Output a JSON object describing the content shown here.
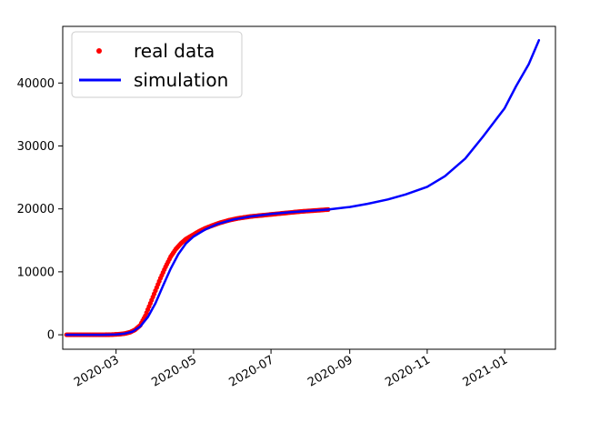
{
  "chart_data": {
    "type": "line",
    "x_axis": {
      "kind": "date",
      "min": "2020-01-19",
      "max": "2021-02-10",
      "ticks": [
        "2020-03-01",
        "2020-05-01",
        "2020-07-01",
        "2020-09-01",
        "2020-11-01",
        "2021-01-01"
      ],
      "tick_labels": [
        "2020-03",
        "2020-05",
        "2020-07",
        "2020-09",
        "2020-11",
        "2021-01"
      ]
    },
    "y_axis": {
      "min": -2300,
      "max": 49000,
      "ticks": [
        0,
        10000,
        20000,
        30000,
        40000
      ],
      "tick_labels": [
        "0",
        "10000",
        "20000",
        "30000",
        "40000"
      ]
    },
    "grid": false,
    "legend": {
      "placement": "upper-left",
      "entries": [
        "real data",
        "simulation"
      ]
    },
    "series": [
      {
        "name": "real data",
        "style": "points",
        "color": "#ff0000",
        "x": [
          "2020-01-22",
          "2020-01-29",
          "2020-02-05",
          "2020-02-12",
          "2020-02-19",
          "2020-02-26",
          "2020-03-04",
          "2020-03-08",
          "2020-03-12",
          "2020-03-16",
          "2020-03-20",
          "2020-03-24",
          "2020-03-28",
          "2020-04-01",
          "2020-04-05",
          "2020-04-09",
          "2020-04-13",
          "2020-04-17",
          "2020-04-21",
          "2020-04-25",
          "2020-04-30",
          "2020-05-05",
          "2020-05-10",
          "2020-05-15",
          "2020-05-22",
          "2020-05-29",
          "2020-06-05",
          "2020-06-15",
          "2020-06-25",
          "2020-07-05",
          "2020-07-15",
          "2020-07-25",
          "2020-08-05",
          "2020-08-15"
        ],
        "y": [
          0,
          0,
          0,
          0,
          0,
          20,
          100,
          200,
          400,
          800,
          1500,
          3000,
          5000,
          7000,
          9000,
          10800,
          12400,
          13600,
          14500,
          15200,
          15800,
          16400,
          16900,
          17300,
          17800,
          18200,
          18500,
          18800,
          19000,
          19200,
          19400,
          19600,
          19750,
          19900
        ]
      },
      {
        "name": "simulation",
        "style": "line",
        "color": "#0000ff",
        "x": [
          "2020-01-22",
          "2020-02-05",
          "2020-02-19",
          "2020-03-01",
          "2020-03-08",
          "2020-03-14",
          "2020-03-20",
          "2020-03-26",
          "2020-04-01",
          "2020-04-07",
          "2020-04-13",
          "2020-04-19",
          "2020-04-25",
          "2020-05-01",
          "2020-05-10",
          "2020-05-20",
          "2020-06-01",
          "2020-06-15",
          "2020-07-01",
          "2020-07-15",
          "2020-08-01",
          "2020-08-15",
          "2020-09-01",
          "2020-09-15",
          "2020-10-01",
          "2020-10-15",
          "2020-11-01",
          "2020-11-15",
          "2020-12-01",
          "2020-12-15",
          "2021-01-01",
          "2021-01-10",
          "2021-01-20",
          "2021-01-28"
        ],
        "y": [
          0,
          0,
          0,
          50,
          200,
          500,
          1300,
          2800,
          5000,
          7800,
          10500,
          12800,
          14500,
          15600,
          16700,
          17600,
          18300,
          18800,
          19200,
          19450,
          19700,
          19900,
          20300,
          20800,
          21500,
          22300,
          23500,
          25200,
          28000,
          31500,
          36000,
          39500,
          43000,
          46800
        ]
      }
    ]
  }
}
